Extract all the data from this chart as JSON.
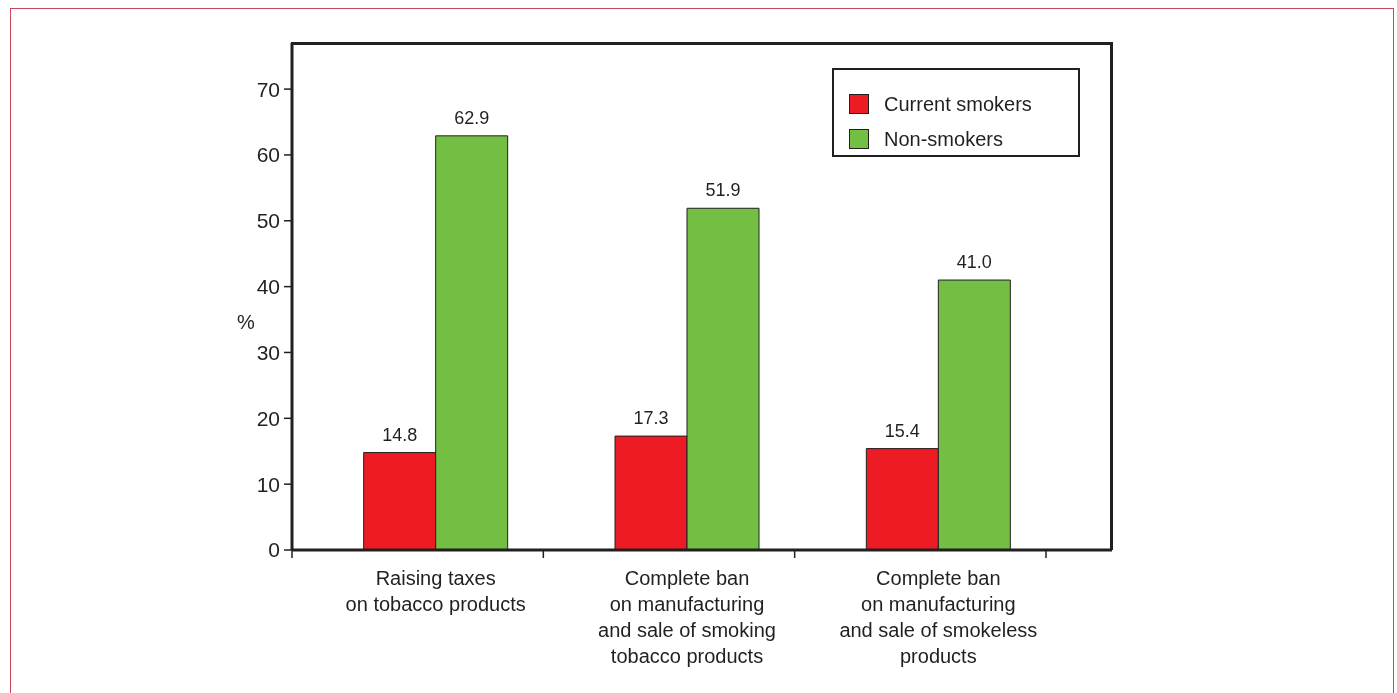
{
  "chart_data": {
    "type": "bar",
    "ylabel": "%",
    "categories": [
      "Raising taxes\non tobacco products",
      "Complete ban\non manufacturing\nand sale of smoking\ntobacco products",
      "Complete ban\non manufacturing\nand sale of smokeless\nproducts"
    ],
    "series": [
      {
        "name": "Current smokers",
        "color": "#ed1c24",
        "values": [
          14.8,
          17.3,
          15.4
        ],
        "value_labels": [
          "14.8",
          "17.3",
          "15.4"
        ]
      },
      {
        "name": "Non-smokers",
        "color": "#72bf44",
        "values": [
          62.9,
          51.9,
          41
        ],
        "value_labels": [
          "62.9",
          "51.9",
          "41.0"
        ]
      }
    ],
    "ylim": [
      0,
      77
    ],
    "yticks": [
      0,
      10,
      20,
      30,
      40,
      50,
      60,
      70
    ],
    "legend": "top right"
  }
}
